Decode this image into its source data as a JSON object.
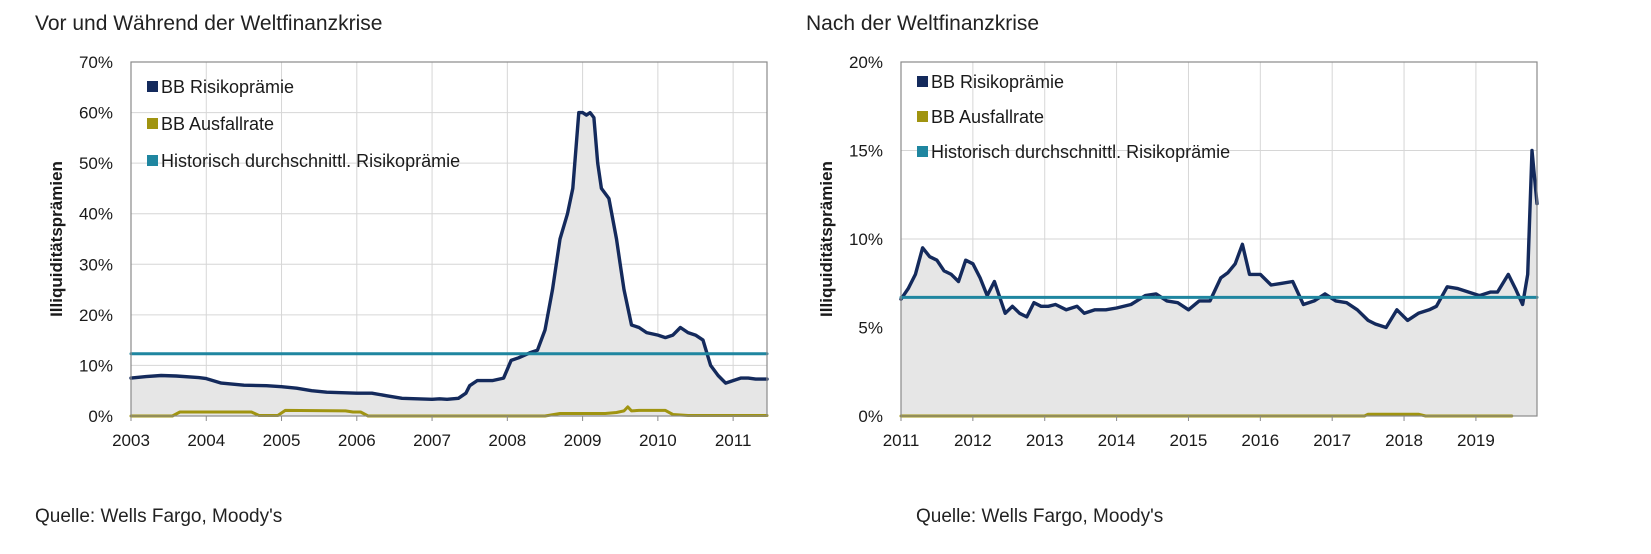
{
  "colors": {
    "risk": "#142a5c",
    "default": "#a09410",
    "hist": "#1f86a0",
    "fill": "#e6e6e6",
    "grid": "#d6d6d6",
    "frame": "#8a8a8a"
  },
  "left": {
    "title": "Vor und Während der Weltfinanzkrise",
    "source": "Quelle: Wells Fargo, Moody's"
  },
  "right": {
    "title": "Nach der Weltfinanzkrise",
    "source": "Quelle: Wells Fargo, Moody's"
  },
  "chart_data": [
    {
      "type": "line",
      "title": "Vor und Während der Weltfinanzkrise",
      "ylabel": "Illiquiditätsprämien",
      "xlim": [
        2003,
        2011.45
      ],
      "ylim": [
        0,
        70
      ],
      "xticks": [
        2003,
        2004,
        2005,
        2006,
        2007,
        2008,
        2009,
        2010,
        2011
      ],
      "xtick_labels": [
        "2003",
        "2004",
        "2005",
        "2006",
        "2007",
        "2008",
        "2009",
        "2010",
        "2011"
      ],
      "yticks": [
        0,
        10,
        20,
        30,
        40,
        50,
        60,
        70
      ],
      "ytick_labels": [
        "0%",
        "10%",
        "20%",
        "30%",
        "40%",
        "50%",
        "60%",
        "70%"
      ],
      "grid": true,
      "legend_position": "top-left",
      "series": [
        {
          "name": "BB Risikoprämie",
          "color_key": "risk",
          "filled": true,
          "x": [
            2003.0,
            2003.2,
            2003.4,
            2003.6,
            2003.9,
            2004.0,
            2004.2,
            2004.5,
            2004.8,
            2005.0,
            2005.2,
            2005.4,
            2005.6,
            2005.8,
            2006.0,
            2006.2,
            2006.4,
            2006.6,
            2006.8,
            2007.0,
            2007.1,
            2007.2,
            2007.35,
            2007.45,
            2007.5,
            2007.6,
            2007.8,
            2007.95,
            2008.05,
            2008.15,
            2008.3,
            2008.4,
            2008.5,
            2008.6,
            2008.7,
            2008.8,
            2008.87,
            2008.95,
            2009.0,
            2009.05,
            2009.1,
            2009.15,
            2009.2,
            2009.25,
            2009.35,
            2009.45,
            2009.5,
            2009.55,
            2009.65,
            2009.75,
            2009.85,
            2010.0,
            2010.1,
            2010.2,
            2010.3,
            2010.4,
            2010.5,
            2010.6,
            2010.7,
            2010.8,
            2010.9,
            2011.0,
            2011.1,
            2011.2,
            2011.3,
            2011.45
          ],
          "y": [
            7.5,
            7.8,
            8.0,
            7.9,
            7.6,
            7.4,
            6.5,
            6.1,
            6.0,
            5.8,
            5.5,
            5.0,
            4.7,
            4.6,
            4.5,
            4.5,
            4.0,
            3.5,
            3.4,
            3.3,
            3.4,
            3.3,
            3.5,
            4.5,
            6.0,
            7.0,
            7.0,
            7.5,
            11.0,
            11.5,
            12.5,
            13.0,
            17.0,
            25.0,
            35.0,
            40.0,
            45.0,
            60.0,
            60.0,
            59.5,
            60.0,
            59.0,
            50.0,
            45.0,
            43.0,
            35.0,
            30.0,
            25.0,
            18.0,
            17.5,
            16.5,
            16.0,
            15.5,
            16.0,
            17.5,
            16.5,
            16.0,
            15.0,
            10.0,
            8.0,
            6.5,
            7.0,
            7.5,
            7.5,
            7.3,
            7.3
          ]
        },
        {
          "name": "BB Ausfallrate",
          "color_key": "default",
          "filled": false,
          "x": [
            2003.0,
            2003.55,
            2003.65,
            2004.6,
            2004.7,
            2004.95,
            2005.05,
            2005.85,
            2005.95,
            2006.05,
            2006.15,
            2008.5,
            2008.7,
            2009.3,
            2009.45,
            2009.55,
            2009.6,
            2009.65,
            2009.75,
            2010.1,
            2010.2,
            2010.4,
            2011.45
          ],
          "y": [
            0,
            0,
            0.8,
            0.8,
            0.1,
            0.1,
            1.1,
            1.0,
            0.8,
            0.8,
            0,
            0,
            0.5,
            0.5,
            0.7,
            1.0,
            1.8,
            1.0,
            1.1,
            1.1,
            0.3,
            0.1,
            0.1
          ]
        },
        {
          "name": "Historisch durchschnittl. Risikoprämie",
          "color_key": "hist",
          "filled": false,
          "x": [
            2003.0,
            2011.45
          ],
          "y": [
            12.3,
            12.3
          ]
        }
      ]
    },
    {
      "type": "line",
      "title": "Nach der Weltfinanzkrise",
      "ylabel": "Illiquiditätsprämien",
      "xlim": [
        2011,
        2019.85
      ],
      "ylim": [
        0,
        20
      ],
      "xticks": [
        2011,
        2012,
        2013,
        2014,
        2015,
        2016,
        2017,
        2018,
        2019
      ],
      "xtick_labels": [
        "2011",
        "2012",
        "2013",
        "2014",
        "2015",
        "2016",
        "2017",
        "2018",
        "2019"
      ],
      "yticks": [
        0,
        5,
        10,
        15,
        20
      ],
      "ytick_labels": [
        "0%",
        "5%",
        "10%",
        "15%",
        "20%"
      ],
      "grid": true,
      "legend_position": "top-left",
      "series": [
        {
          "name": "BB Risikoprämie",
          "color_key": "risk",
          "filled": true,
          "x": [
            2011.0,
            2011.1,
            2011.2,
            2011.3,
            2011.4,
            2011.5,
            2011.6,
            2011.7,
            2011.8,
            2011.9,
            2012.0,
            2012.1,
            2012.2,
            2012.3,
            2012.45,
            2012.55,
            2012.65,
            2012.75,
            2012.85,
            2012.95,
            2013.05,
            2013.15,
            2013.3,
            2013.45,
            2013.55,
            2013.7,
            2013.85,
            2014.0,
            2014.2,
            2014.4,
            2014.55,
            2014.7,
            2014.85,
            2015.0,
            2015.15,
            2015.3,
            2015.45,
            2015.55,
            2015.65,
            2015.75,
            2015.85,
            2016.0,
            2016.15,
            2016.3,
            2016.45,
            2016.6,
            2016.75,
            2016.9,
            2017.05,
            2017.2,
            2017.35,
            2017.5,
            2017.6,
            2017.75,
            2017.9,
            2018.05,
            2018.2,
            2018.35,
            2018.45,
            2018.6,
            2018.75,
            2018.9,
            2019.05,
            2019.2,
            2019.3,
            2019.45,
            2019.55,
            2019.65,
            2019.72,
            2019.78,
            2019.85
          ],
          "y": [
            6.6,
            7.2,
            8.0,
            9.5,
            9.0,
            8.8,
            8.2,
            8.0,
            7.6,
            8.8,
            8.6,
            7.8,
            6.8,
            7.6,
            5.8,
            6.2,
            5.8,
            5.6,
            6.4,
            6.2,
            6.2,
            6.3,
            6.0,
            6.2,
            5.8,
            6.0,
            6.0,
            6.1,
            6.3,
            6.8,
            6.9,
            6.5,
            6.4,
            6.0,
            6.5,
            6.5,
            7.8,
            8.1,
            8.6,
            9.7,
            8.0,
            8.0,
            7.4,
            7.5,
            7.6,
            6.3,
            6.5,
            6.9,
            6.5,
            6.4,
            6.0,
            5.4,
            5.2,
            5.0,
            6.0,
            5.4,
            5.8,
            6.0,
            6.2,
            7.3,
            7.2,
            7.0,
            6.8,
            7.0,
            7.0,
            8.0,
            7.2,
            6.3,
            8.0,
            15.0,
            12.0
          ]
        },
        {
          "name": "BB Ausfallrate",
          "color_key": "default",
          "filled": false,
          "x": [
            2011.0,
            2017.45,
            2017.5,
            2018.2,
            2018.3,
            2019.5
          ],
          "y": [
            0,
            0,
            0.1,
            0.1,
            0,
            0
          ]
        },
        {
          "name": "Historisch durchschnittl. Risikoprämie",
          "color_key": "hist",
          "filled": false,
          "x": [
            2011.0,
            2019.85
          ],
          "y": [
            6.7,
            6.7
          ]
        }
      ]
    }
  ]
}
